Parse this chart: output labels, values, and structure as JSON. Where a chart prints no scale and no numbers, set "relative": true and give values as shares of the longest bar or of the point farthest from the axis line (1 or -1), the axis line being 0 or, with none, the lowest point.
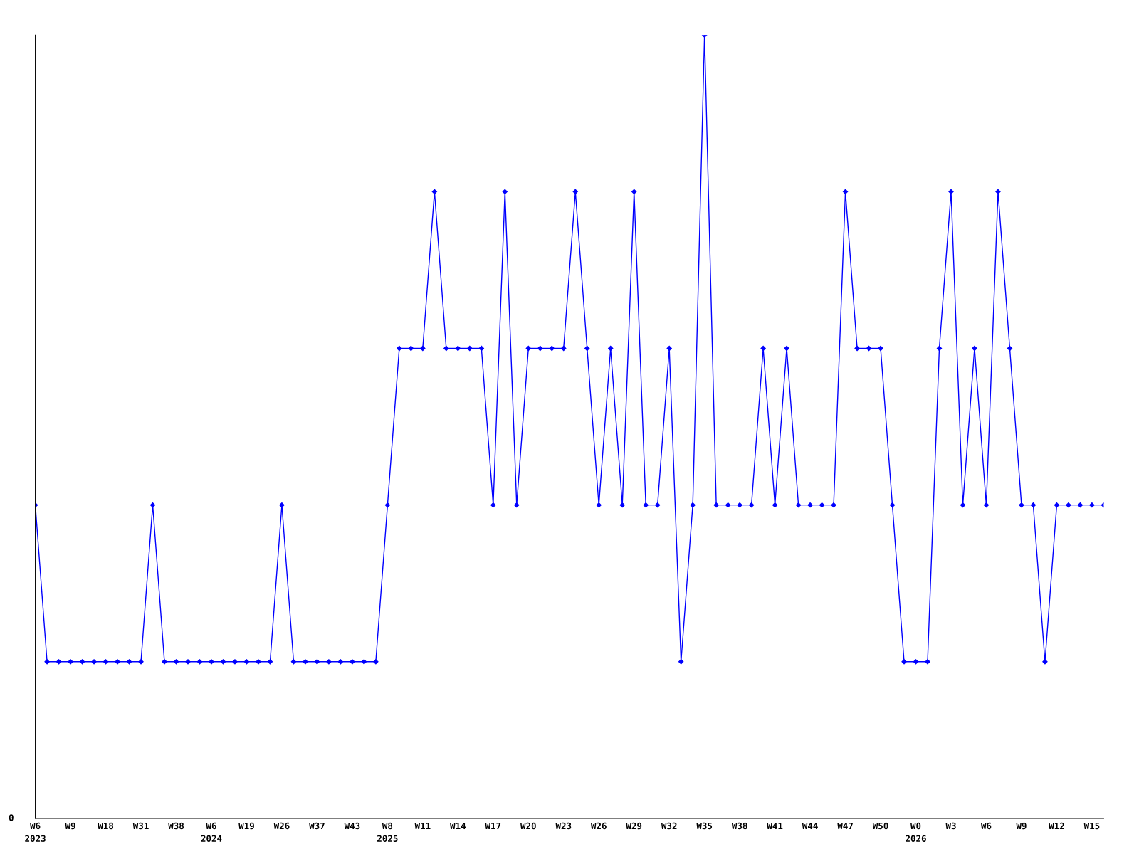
{
  "chart_data": {
    "type": "line",
    "relative": true,
    "marker": "diamond",
    "line_style": "solid",
    "grid": false,
    "legend": false,
    "annotations": [
      "0"
    ],
    "categories": [
      "W6\n2023",
      null,
      null,
      "W9",
      null,
      null,
      "W18",
      null,
      null,
      "W31",
      null,
      null,
      "W38",
      null,
      null,
      "W6\n2024",
      null,
      null,
      "W19",
      null,
      null,
      "W26",
      null,
      null,
      "W37",
      null,
      null,
      "W43",
      null,
      null,
      "W8\n2025",
      null,
      null,
      "W11",
      null,
      null,
      "W14",
      null,
      null,
      "W17",
      null,
      null,
      "W20",
      null,
      null,
      "W23",
      null,
      null,
      "W26",
      null,
      null,
      "W29",
      null,
      null,
      "W32",
      null,
      null,
      "W35",
      null,
      null,
      "W38",
      null,
      null,
      "W41",
      null,
      null,
      "W44",
      null,
      null,
      "W47",
      null,
      null,
      "W50",
      null,
      null,
      "W0\n2026",
      null,
      null,
      "W3",
      null,
      null,
      "W6",
      null,
      null,
      "W9",
      null,
      null,
      "W12",
      null,
      null,
      "W15",
      null
    ],
    "series": [
      {
        "color": "#0000ff",
        "values": [
          0.4,
          0.2,
          0.2,
          0.2,
          0.2,
          0.2,
          0.2,
          0.2,
          0.2,
          0.2,
          0.4,
          0.2,
          0.2,
          0.2,
          0.2,
          0.2,
          0.2,
          0.2,
          0.2,
          0.2,
          0.2,
          0.4,
          0.2,
          0.2,
          0.2,
          0.2,
          0.2,
          0.2,
          0.2,
          0.2,
          0.4,
          0.6,
          0.6,
          0.6,
          0.8,
          0.6,
          0.6,
          0.6,
          0.6,
          0.4,
          0.8,
          0.4,
          0.6,
          0.6,
          0.6,
          0.6,
          0.8,
          0.6,
          0.4,
          0.6,
          0.4,
          0.8,
          0.4,
          0.4,
          0.6,
          0.2,
          0.4,
          1.0,
          0.4,
          0.4,
          0.4,
          0.4,
          0.6,
          0.4,
          0.6,
          0.4,
          0.4,
          0.4,
          0.4,
          0.8,
          0.6,
          0.6,
          0.6,
          0.4,
          0.2,
          0.2,
          0.2,
          0.6,
          0.8,
          0.4,
          0.6,
          0.4,
          0.8,
          0.6,
          0.4,
          0.4,
          0.2,
          0.4,
          0.4,
          0.4,
          0.4,
          0.4
        ]
      }
    ]
  }
}
